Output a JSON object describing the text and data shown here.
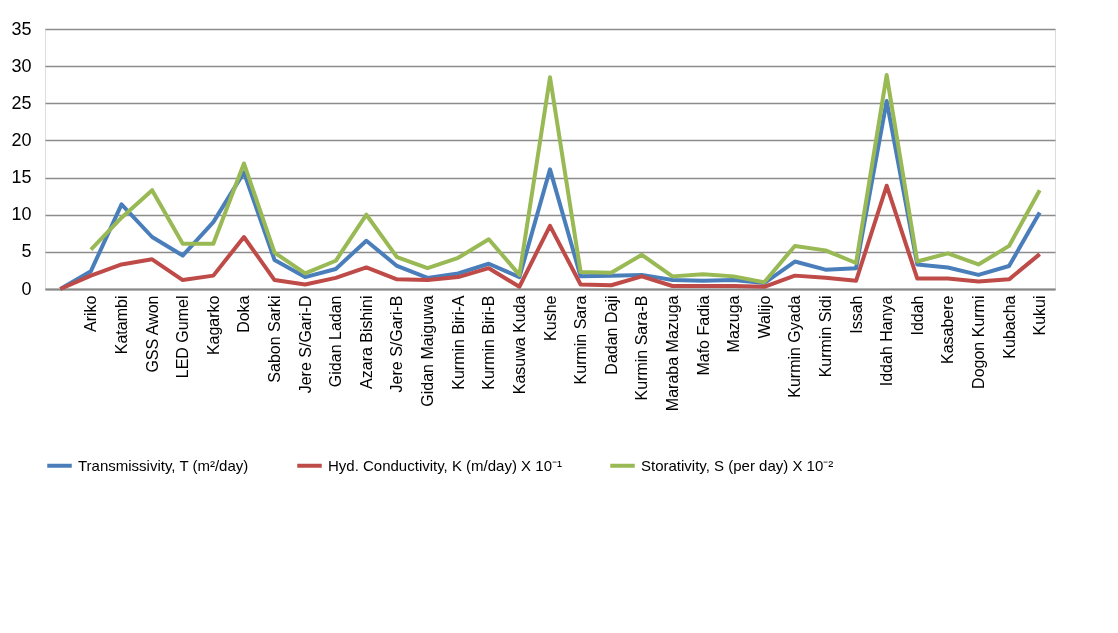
{
  "chart_data": {
    "type": "line",
    "categories": [
      null,
      "Ariko",
      "Katambi",
      "GSS Awon",
      "LED Gumel",
      "Kagarko",
      "Doka",
      "Sabon Sarki",
      "Jere S/Gari-D",
      "Gidan Ladan",
      "Azara Bishini",
      "Jere S/Gari-B",
      "Gidan Maiguwa",
      "Kurmin Biri-A",
      "Kurmin Biri-B",
      "Kasuwa Kuda",
      "Kushe",
      "Kurmin Sara",
      "Dadan Daji",
      "Kurmin Sara-B",
      "Maraba Mazuga",
      "Mafo Fadia",
      "Mazuga",
      "Walijo",
      "Kurmin Gyada",
      "Kurmin Sidi",
      "Issah",
      "Iddah Hanya",
      "Iddah",
      "Kasabere",
      "Dogon Kurmi",
      "Kubacha",
      "Kukui"
    ],
    "series": [
      {
        "name": "Transmissivity, T (m²/day)",
        "color": "#4a7ebb",
        "values": [
          0,
          2.4,
          11.4,
          7.0,
          4.5,
          9.0,
          15.7,
          3.9,
          1.6,
          2.7,
          6.5,
          3.1,
          1.5,
          2.1,
          3.4,
          1.6,
          16.1,
          1.7,
          1.8,
          1.9,
          1.2,
          1.1,
          1.2,
          0.8,
          3.7,
          2.6,
          2.8,
          25.3,
          3.3,
          2.9,
          1.9,
          3.1,
          10.3
        ]
      },
      {
        "name": "Hyd. Conductivity, K (m/day) X 10⁻¹",
        "color": "#be4b48",
        "values": [
          0,
          1.8,
          3.3,
          4.0,
          1.2,
          1.8,
          7.0,
          1.2,
          0.6,
          1.5,
          2.9,
          1.3,
          1.2,
          1.6,
          2.8,
          0.3,
          8.5,
          0.6,
          0.5,
          1.7,
          0.4,
          0.4,
          0.4,
          0.3,
          1.8,
          1.5,
          1.1,
          13.9,
          1.4,
          1.4,
          1.0,
          1.3,
          4.7
        ]
      },
      {
        "name": "Storativity, S (per day) X 10⁻²",
        "color": "#98b954",
        "values": [
          null,
          5.3,
          9.6,
          13.3,
          6.1,
          6.1,
          16.9,
          4.9,
          2.1,
          3.8,
          10.0,
          4.3,
          2.8,
          4.2,
          6.7,
          1.9,
          28.5,
          2.3,
          2.2,
          4.6,
          1.7,
          2.0,
          1.7,
          0.9,
          5.8,
          5.2,
          3.5,
          28.8,
          3.7,
          4.8,
          3.3,
          5.8,
          13.3
        ]
      }
    ],
    "ylim": [
      0,
      35
    ],
    "yticks": [
      0,
      5,
      10,
      15,
      20,
      25,
      30,
      35
    ],
    "grid": "y",
    "legend": "bottom",
    "marker": "none",
    "line_style": "solid"
  }
}
